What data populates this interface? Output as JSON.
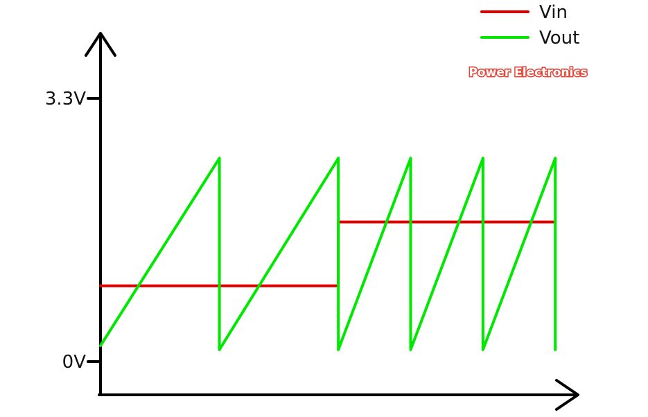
{
  "chart_data": {
    "type": "line",
    "title": "",
    "xlabel": "",
    "ylabel": "",
    "ylim": [
      0,
      3.3
    ],
    "xlim": [
      0,
      10
    ],
    "grid": false,
    "legend_position": "top-right",
    "y_ticks": [
      {
        "value": 0,
        "label": "0V"
      },
      {
        "value": 3.3,
        "label": "3.3V"
      }
    ],
    "series": [
      {
        "name": "Vin",
        "color": "#e00000",
        "x": [
          0,
          5.1,
          5.1,
          9.7
        ],
        "y": [
          0.95,
          0.95,
          1.75,
          1.75
        ]
      },
      {
        "name": "Vout",
        "color": "#00e800",
        "x": [
          0,
          2.55,
          2.55,
          5.1,
          5.1,
          6.65,
          6.65,
          8.2,
          8.2,
          9.75,
          9.75
        ],
        "y": [
          0.2,
          2.55,
          0.15,
          2.55,
          0.15,
          2.55,
          0.15,
          2.55,
          0.15,
          2.55,
          0.15
        ]
      }
    ],
    "annotations": [
      "Power Electronics"
    ]
  }
}
